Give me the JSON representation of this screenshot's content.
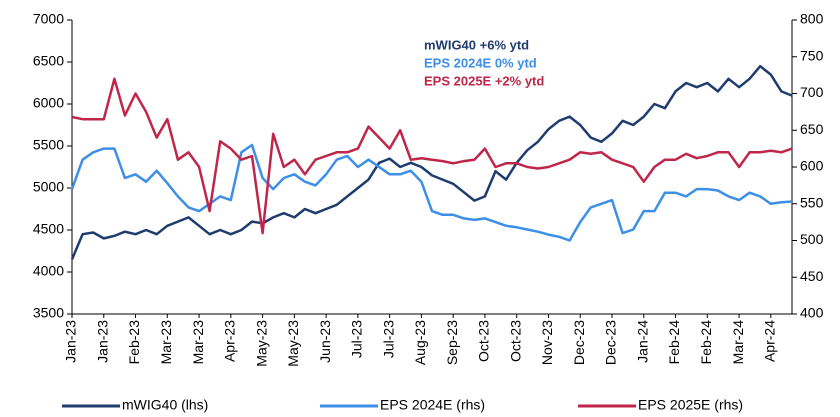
{
  "chart_data": {
    "type": "line",
    "annotations": [
      {
        "text": "mWIG40 +6% ytd",
        "color": "#1f3c6e"
      },
      {
        "text": "EPS 2024E 0% ytd",
        "color": "#3d8fe8"
      },
      {
        "text": "EPS 2025E +2% ytd",
        "color": "#c0264a"
      }
    ],
    "categories": [
      "Jan-23",
      null,
      null,
      "Jan-23",
      null,
      null,
      "Feb-23",
      null,
      null,
      "Mar-23",
      null,
      null,
      "Mar-23",
      null,
      null,
      "Apr-23",
      null,
      null,
      "May-23",
      null,
      null,
      "May-23",
      null,
      null,
      "Jun-23",
      null,
      null,
      "Jul-23",
      null,
      null,
      "Jul-23",
      null,
      null,
      "Aug-23",
      null,
      null,
      "Sep-23",
      null,
      null,
      "Oct-23",
      null,
      null,
      "Oct-23",
      null,
      null,
      "Nov-23",
      null,
      null,
      "Dec-23",
      null,
      null,
      "Dec-23",
      null,
      null,
      "Jan-24",
      null,
      null,
      "Feb-24",
      null,
      null,
      "Feb-24",
      null,
      null,
      "Mar-24",
      null,
      null,
      "Apr-24",
      null,
      null
    ],
    "series": [
      {
        "name": "mWIG40 (lhs)",
        "color": "#1f3c6e",
        "axis": "y",
        "values": [
          4150,
          4450,
          4470,
          4400,
          4430,
          4480,
          4450,
          4500,
          4450,
          4550,
          4600,
          4650,
          4550,
          4450,
          4500,
          4450,
          4500,
          4600,
          4580,
          4650,
          4700,
          4650,
          4750,
          4700,
          4750,
          4800,
          4900,
          5000,
          5100,
          5300,
          5350,
          5250,
          5300,
          5250,
          5150,
          5100,
          5050,
          4950,
          4850,
          4900,
          5200,
          5100,
          5300,
          5450,
          5550,
          5700,
          5800,
          5850,
          5750,
          5600,
          5550,
          5650,
          5800,
          5750,
          5850,
          6000,
          5950,
          6150,
          6250,
          6200,
          6250,
          6150,
          6300,
          6200,
          6300,
          6450,
          6350,
          6150,
          6100
        ]
      },
      {
        "name": "EPS 2024E (rhs)",
        "color": "#3d8fe8",
        "axis": "y2",
        "values": [
          570,
          610,
          620,
          625,
          625,
          585,
          590,
          580,
          595,
          578,
          560,
          545,
          540,
          550,
          560,
          555,
          620,
          630,
          585,
          570,
          585,
          590,
          580,
          575,
          590,
          610,
          615,
          600,
          610,
          600,
          590,
          590,
          595,
          580,
          540,
          535,
          535,
          530,
          528,
          530,
          525,
          520,
          518,
          515,
          512,
          508,
          505,
          500,
          525,
          545,
          550,
          555,
          510,
          515,
          540,
          540,
          565,
          565,
          560,
          570,
          570,
          568,
          560,
          555,
          565,
          560,
          550,
          552,
          553
        ]
      },
      {
        "name": "EPS 2025E (rhs)",
        "color": "#c0264a",
        "axis": "y2",
        "values": [
          668,
          665,
          665,
          665,
          720,
          670,
          700,
          675,
          640,
          665,
          610,
          620,
          600,
          540,
          635,
          625,
          610,
          615,
          510,
          645,
          600,
          610,
          590,
          610,
          615,
          620,
          620,
          625,
          655,
          640,
          625,
          650,
          610,
          612,
          610,
          608,
          605,
          608,
          610,
          625,
          600,
          605,
          605,
          600,
          598,
          600,
          605,
          610,
          620,
          618,
          620,
          610,
          605,
          600,
          580,
          600,
          610,
          610,
          618,
          612,
          615,
          620,
          620,
          600,
          620,
          620,
          622,
          620,
          625
        ]
      }
    ],
    "ylim": [
      3500,
      7000
    ],
    "yticks": [
      3500,
      4000,
      4500,
      5000,
      5500,
      6000,
      6500,
      7000
    ],
    "y2lim": [
      400,
      800
    ],
    "y2ticks": [
      400,
      450,
      500,
      550,
      600,
      650,
      700,
      750,
      800
    ],
    "grid": false
  }
}
